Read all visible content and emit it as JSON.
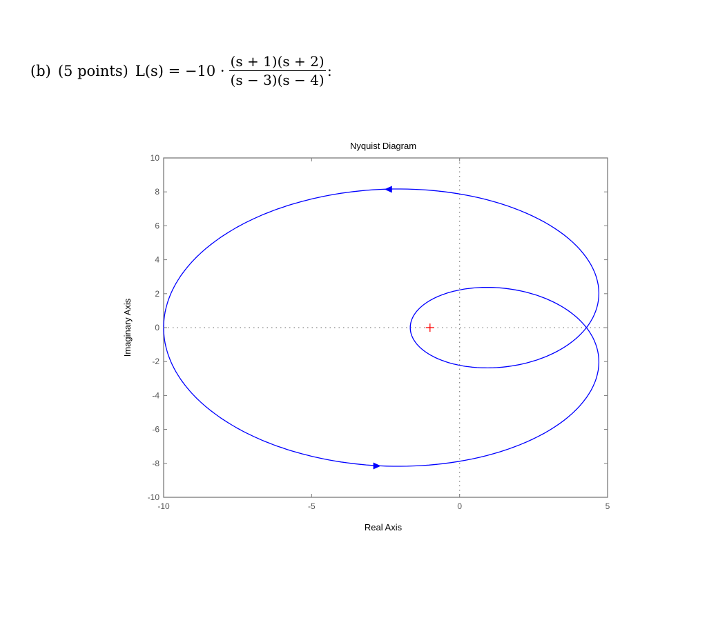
{
  "problem": {
    "part": "(b)",
    "points": "(5 points)",
    "lhs": "L(s) = −10 ·",
    "numerator": "(s + 1)(s + 2)",
    "denominator": "(s − 3)(s − 4)",
    "trailing": ":"
  },
  "chart_data": {
    "type": "line",
    "title": "Nyquist Diagram",
    "xlabel": "Real Axis",
    "ylabel": "Imaginary Axis",
    "xlim": [
      -10,
      5
    ],
    "ylim": [
      -10,
      10
    ],
    "xticks": [
      -10,
      -5,
      0,
      5
    ],
    "yticks": [
      -10,
      -8,
      -6,
      -4,
      -2,
      0,
      2,
      4,
      6,
      8,
      10
    ],
    "xtick_labels": [
      "-10",
      "-5",
      "0",
      "5"
    ],
    "ytick_labels": [
      "-10",
      "-8",
      "-6",
      "-4",
      "-2",
      "0",
      "2",
      "4",
      "6",
      "8",
      "10"
    ],
    "grid": false,
    "zero_lines": "dotted",
    "transfer_function": "L(s) = -10 (s+1)(s+2) / ((s-3)(s-4))",
    "series": [
      {
        "name": "Nyquist curve",
        "color": "#0000ff",
        "key_points": [
          {
            "omega": "0",
            "re": -1.67,
            "im": 0
          },
          {
            "omega": "small +",
            "re": -1.5,
            "im": -1.3
          },
          {
            "omega": "",
            "re": 1.2,
            "im": -2.35
          },
          {
            "omega": "",
            "re": 4.3,
            "im": 0
          },
          {
            "omega": "",
            "re": 4.75,
            "im": 2.3
          },
          {
            "omega": "",
            "re": 3.5,
            "im": 6.0
          },
          {
            "omega": "",
            "re": -2.5,
            "im": 8.15
          },
          {
            "omega": "",
            "re": -7.2,
            "im": 6.0
          },
          {
            "omega": "inf",
            "re": -10,
            "im": 0
          }
        ],
        "arrows": [
          {
            "re": -2.4,
            "im": 8.15,
            "direction": "left"
          },
          {
            "re": -2.8,
            "im": -8.15,
            "direction": "right"
          }
        ]
      }
    ],
    "critical_point": {
      "re": -1,
      "im": 0,
      "marker": "+",
      "color": "#ff0000"
    }
  }
}
